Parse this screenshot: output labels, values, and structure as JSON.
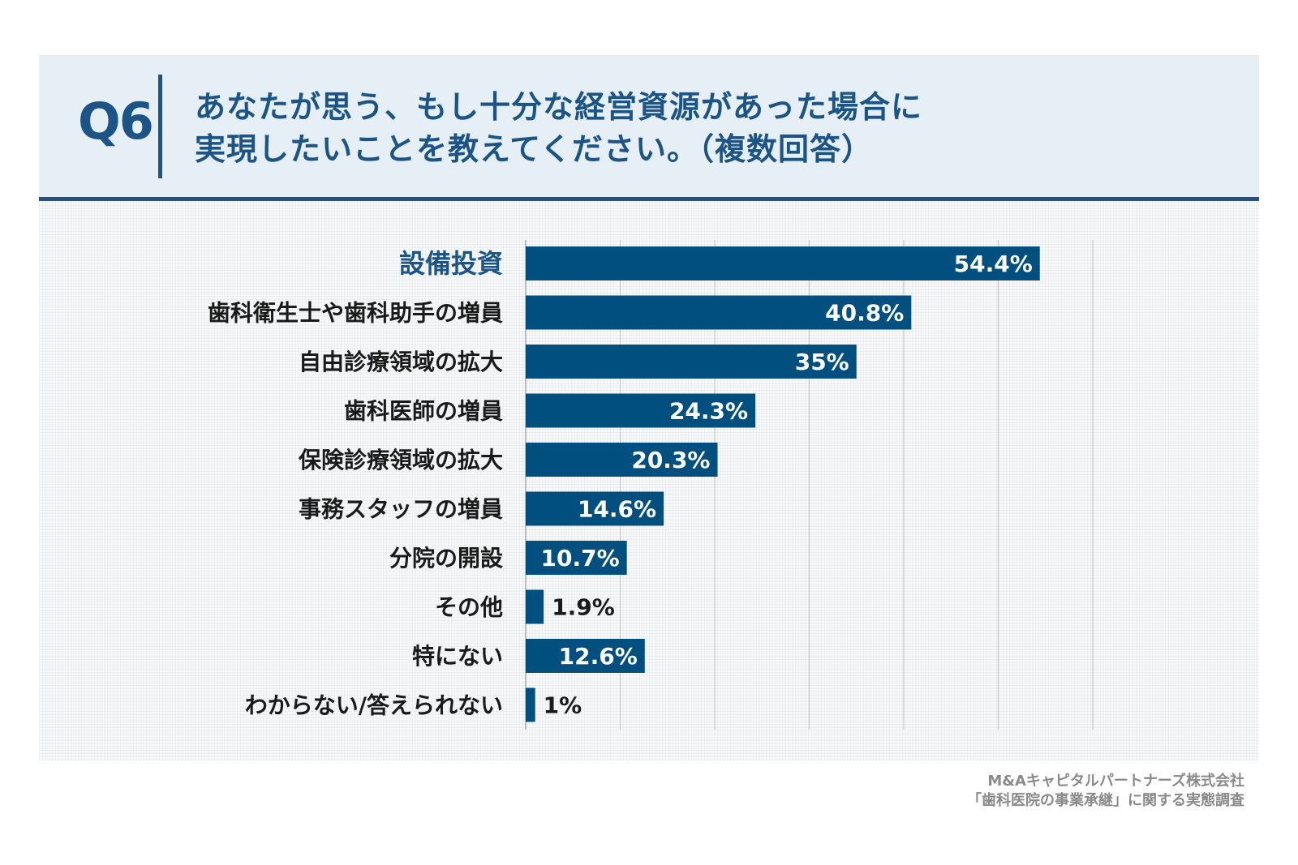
{
  "header": {
    "question_number": "Q6",
    "question_line1": "あなたが思う、もし十分な経営資源があった場合に",
    "question_line2": "実現したいことを教えてください。（複数回答）"
  },
  "source": {
    "line1": "M&Aキャピタルパートナーズ株式会社",
    "line2": "「歯科医院の事業承継」に関する実態調査"
  },
  "colors": {
    "bar": "#004f7f",
    "highlight_label": "#1b5485",
    "label": "#1a1a1a",
    "value_inside": "#ffffff",
    "value_outside": "#1a1a1a",
    "grid": "#c8c8c8"
  },
  "chart_data": {
    "type": "bar",
    "orientation": "horizontal",
    "categories": [
      "設備投資",
      "歯科衛生士や歯科助手の増員",
      "自由診療領域の拡大",
      "歯科医師の増員",
      "保険診療領域の拡大",
      "事務スタッフの増員",
      "分院の開設",
      "その他",
      "特にない",
      "わからない/答えられない"
    ],
    "values": [
      54.4,
      40.8,
      35,
      24.3,
      20.3,
      14.6,
      10.7,
      1.9,
      12.6,
      1
    ],
    "value_labels": [
      "54.4%",
      "40.8%",
      "35%",
      "24.3%",
      "20.3%",
      "14.6%",
      "10.7%",
      "1.9%",
      "12.6%",
      "1%"
    ],
    "highlighted_category": "設備投資",
    "xlim": [
      0,
      60
    ],
    "grid": true,
    "grid_step": 10,
    "legend": "none"
  }
}
